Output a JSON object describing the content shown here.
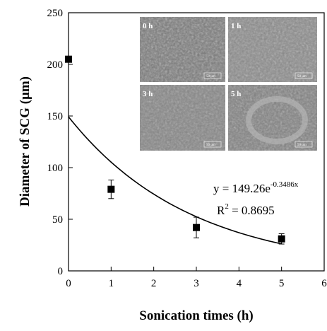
{
  "chart_data": {
    "type": "scatter",
    "xlabel": "Sonication times (h)",
    "ylabel": "Diameter of SCG (μm)",
    "xlim": [
      0,
      6
    ],
    "ylim": [
      0,
      250
    ],
    "xticks": [
      0,
      1,
      2,
      3,
      4,
      5,
      6
    ],
    "yticks": [
      0,
      50,
      100,
      150,
      200,
      250
    ],
    "grid": false,
    "points": [
      {
        "x": 0,
        "y": 205,
        "err": 0
      },
      {
        "x": 1,
        "y": 79,
        "err": 9
      },
      {
        "x": 3,
        "y": 42,
        "err": 10
      },
      {
        "x": 5,
        "y": 31,
        "err": 5
      }
    ],
    "fit": {
      "kind": "exponential",
      "a": 149.26,
      "b": -0.3486,
      "x_range": [
        0,
        5
      ]
    },
    "annotations": {
      "equation_main": "y = 149.26e",
      "equation_exp": "-0.3486x",
      "r2_label": "R",
      "r2_sup": "2",
      "r2_value": " = 0.8695"
    },
    "inset_images": [
      {
        "label": "0 h",
        "scalebar": "50 μm"
      },
      {
        "label": "1 h",
        "scalebar": "50 μm"
      },
      {
        "label": "3 h",
        "scalebar": "50 μm"
      },
      {
        "label": "5 h",
        "scalebar": "50 μm"
      }
    ]
  }
}
